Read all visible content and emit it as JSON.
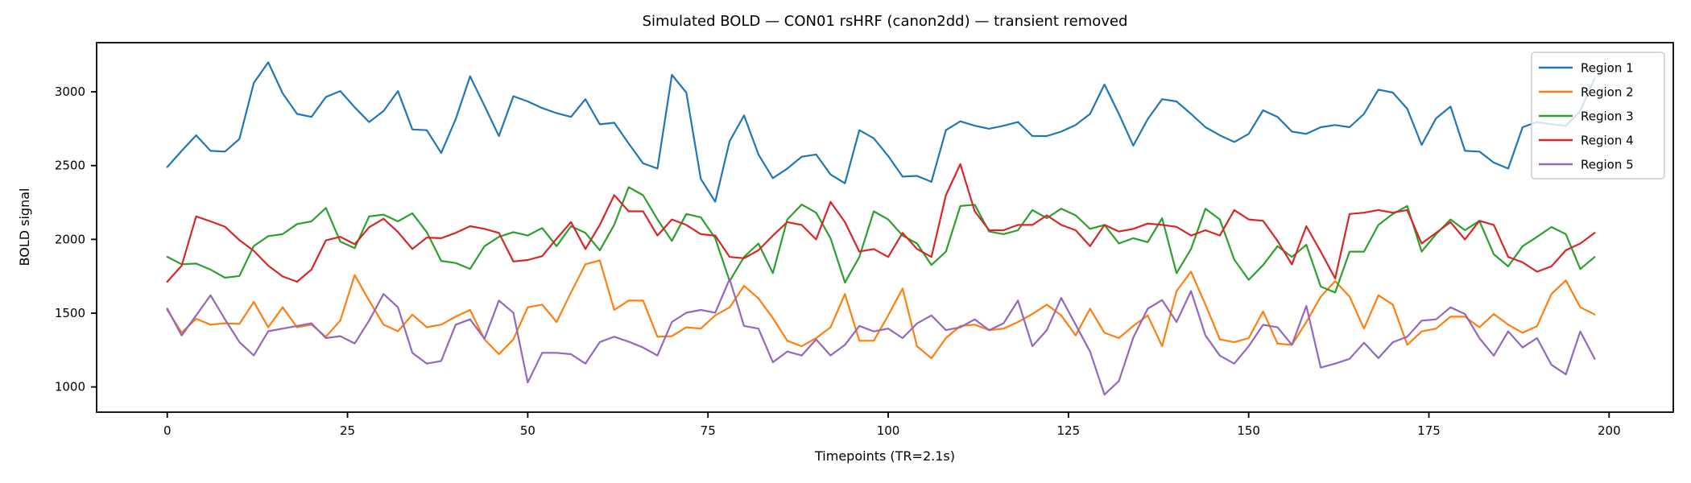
{
  "figure": {
    "background": "#ffffff",
    "title": "Simulated BOLD — CON01 rsHRF (canon2dd) — transient removed"
  },
  "chart_data": {
    "type": "line",
    "title": "Simulated BOLD — CON01 rsHRF (canon2dd) — transient removed",
    "xlabel": "Timepoints (TR=2.1s)",
    "ylabel": "BOLD signal",
    "grid": false,
    "legend_position": "upper right",
    "legend_border_color": "#cccccc",
    "axis_color": "#000000",
    "xlim": [
      -9.8,
      208.9
    ],
    "ylim": [
      829,
      3333
    ],
    "xticks": [
      0,
      25,
      50,
      75,
      100,
      125,
      150,
      175,
      200
    ],
    "yticks": [
      1000,
      1500,
      2000,
      2500,
      3000
    ],
    "x_start": 0,
    "x_step": 2,
    "series": [
      {
        "name": "Region 1",
        "color": "#1f77b4",
        "values": [
          2490,
          2600,
          2705,
          2600,
          2595,
          2680,
          3060,
          3200,
          2990,
          2850,
          2830,
          2965,
          3005,
          2895,
          2795,
          2870,
          3005,
          2745,
          2740,
          2585,
          2815,
          3105,
          2905,
          2700,
          2970,
          2935,
          2890,
          2855,
          2830,
          2950,
          2780,
          2790,
          2650,
          2515,
          2480,
          3115,
          2995,
          2410,
          2255,
          2665,
          2840,
          2575,
          2415,
          2480,
          2560,
          2575,
          2440,
          2380,
          2740,
          2685,
          2565,
          2425,
          2430,
          2390,
          2740,
          2800,
          2770,
          2750,
          2770,
          2795,
          2700,
          2700,
          2730,
          2775,
          2850,
          3050,
          2850,
          2635,
          2815,
          2950,
          2935,
          2850,
          2760,
          2705,
          2660,
          2715,
          2875,
          2830,
          2730,
          2715,
          2760,
          2775,
          2760,
          2850,
          3015,
          2995,
          2885,
          2640,
          2820,
          2900,
          2600,
          2595,
          2520,
          2480,
          2760,
          2795,
          2780,
          2770,
          2870,
          3090
        ]
      },
      {
        "name": "Region 2",
        "color": "#ff7f0e",
        "values": [
          1522,
          1368,
          1462,
          1422,
          1431,
          1427,
          1576,
          1404,
          1540,
          1404,
          1422,
          1340,
          1450,
          1758,
          1585,
          1422,
          1377,
          1490,
          1404,
          1422,
          1476,
          1522,
          1322,
          1222,
          1322,
          1540,
          1558,
          1440,
          1640,
          1831,
          1858,
          1522,
          1585,
          1585,
          1340,
          1344,
          1404,
          1395,
          1485,
          1540,
          1685,
          1600,
          1467,
          1313,
          1276,
          1331,
          1404,
          1630,
          1313,
          1313,
          1485,
          1667,
          1276,
          1194,
          1331,
          1413,
          1422,
          1385,
          1395,
          1440,
          1494,
          1558,
          1485,
          1349,
          1530,
          1367,
          1331,
          1413,
          1485,
          1276,
          1650,
          1781,
          1558,
          1322,
          1303,
          1331,
          1512,
          1294,
          1285,
          1440,
          1612,
          1717,
          1612,
          1395,
          1621,
          1558,
          1285,
          1376,
          1395,
          1476,
          1476,
          1404,
          1494,
          1422,
          1367,
          1412,
          1630,
          1722,
          1540,
          1491
        ]
      },
      {
        "name": "Region 3",
        "color": "#2ca02c",
        "values": [
          1882,
          1831,
          1836,
          1795,
          1740,
          1752,
          1955,
          2022,
          2035,
          2104,
          2122,
          2213,
          1985,
          1940,
          2156,
          2168,
          2122,
          2177,
          2049,
          1854,
          1840,
          1800,
          1954,
          2017,
          2049,
          2026,
          2077,
          1954,
          2089,
          2044,
          1926,
          2099,
          2354,
          2299,
          2135,
          1990,
          2172,
          2150,
          2008,
          1717,
          1881,
          1972,
          1771,
          2135,
          2236,
          2181,
          2008,
          1708,
          1881,
          2190,
          2135,
          2026,
          1972,
          1826,
          1917,
          2226,
          2235,
          2053,
          2035,
          2062,
          2199,
          2144,
          2208,
          2163,
          2071,
          2098,
          1972,
          2008,
          1981,
          2144,
          1771,
          1935,
          2208,
          2135,
          1863,
          1726,
          1826,
          1954,
          1881,
          1963,
          1680,
          1640,
          1917,
          1917,
          2098,
          2172,
          2226,
          1917,
          2035,
          2135,
          2062,
          2126,
          1899,
          1817,
          1954,
          2017,
          2084,
          2035,
          1799,
          1881
        ]
      },
      {
        "name": "Region 4",
        "color": "#d62728",
        "values": [
          1713,
          1822,
          2156,
          2122,
          2086,
          1995,
          1922,
          1822,
          1749,
          1713,
          1795,
          1993,
          2017,
          1967,
          2082,
          2140,
          2050,
          1935,
          2012,
          2008,
          2044,
          2089,
          2071,
          2044,
          1850,
          1860,
          1886,
          2004,
          2117,
          1935,
          2098,
          2300,
          2190,
          2190,
          2026,
          2135,
          2098,
          2035,
          2026,
          1881,
          1872,
          1926,
          2026,
          2117,
          2098,
          1999,
          2254,
          2117,
          1917,
          1935,
          1881,
          2044,
          1935,
          1881,
          2300,
          2510,
          2190,
          2062,
          2062,
          2098,
          2098,
          2163,
          2098,
          2062,
          1954,
          2098,
          2053,
          2071,
          2107,
          2098,
          2085,
          2026,
          2062,
          2026,
          2199,
          2135,
          2126,
          1990,
          1830,
          2089,
          1917,
          1735,
          2172,
          2181,
          2199,
          2181,
          2199,
          1972,
          2044,
          2117,
          1999,
          2126,
          2098,
          1881,
          1844,
          1781,
          1817,
          1926,
          1972,
          2044
        ]
      },
      {
        "name": "Region 5",
        "color": "#9467bd",
        "values": [
          1531,
          1349,
          1485,
          1621,
          1458,
          1304,
          1213,
          1377,
          1395,
          1413,
          1431,
          1331,
          1344,
          1295,
          1449,
          1630,
          1540,
          1231,
          1158,
          1176,
          1422,
          1458,
          1326,
          1585,
          1503,
          1030,
          1231,
          1231,
          1222,
          1158,
          1304,
          1340,
          1307,
          1267,
          1213,
          1440,
          1503,
          1522,
          1503,
          1731,
          1413,
          1395,
          1167,
          1240,
          1213,
          1322,
          1213,
          1285,
          1413,
          1376,
          1395,
          1331,
          1430,
          1485,
          1385,
          1404,
          1458,
          1385,
          1431,
          1585,
          1276,
          1385,
          1603,
          1422,
          1240,
          948,
          1040,
          1334,
          1530,
          1589,
          1440,
          1650,
          1349,
          1212,
          1158,
          1276,
          1421,
          1404,
          1285,
          1549,
          1131,
          1158,
          1190,
          1300,
          1195,
          1303,
          1340,
          1449,
          1458,
          1540,
          1494,
          1331,
          1212,
          1376,
          1267,
          1331,
          1150,
          1085,
          1376,
          1190
        ]
      }
    ]
  }
}
